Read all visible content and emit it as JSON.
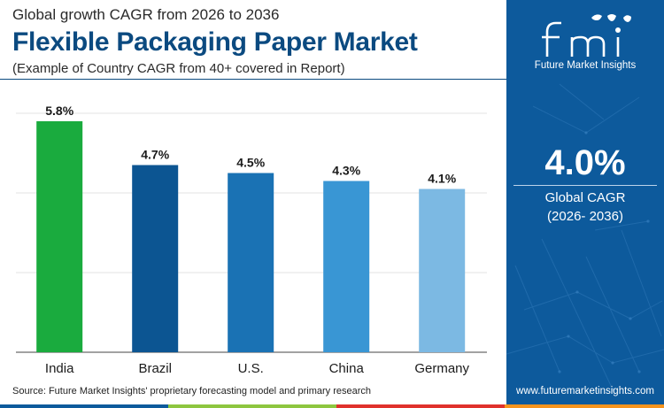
{
  "header": {
    "subtitle": "Global growth CAGR from 2026 to 2036",
    "title": "Flexible Packaging Paper Market",
    "note": "(Example of Country CAGR from 40+ covered in Report)"
  },
  "chart_data": {
    "type": "bar",
    "categories": [
      "India",
      "Brazil",
      "U.S.",
      "China",
      "Germany"
    ],
    "values": [
      5.8,
      4.7,
      4.5,
      4.3,
      4.1
    ],
    "value_labels": [
      "5.8%",
      "4.7%",
      "4.5%",
      "4.3%",
      "4.1%"
    ],
    "bar_colors": [
      "#1aab3e",
      "#0c5592",
      "#1a72b4",
      "#3996d4",
      "#7cb9e3"
    ],
    "title": "",
    "xlabel": "",
    "ylabel": "",
    "ylim": [
      0,
      6
    ],
    "grid": true,
    "legend": "none"
  },
  "source": "Source: Future Market Insights' proprietary forecasting model and primary research",
  "panel": {
    "brand_logo_text": "fmi",
    "brand_name": "Future Market Insights",
    "headline_value": "4.0%",
    "headline_label": "Global CAGR",
    "headline_period": "(2026- 2036)",
    "url": "www.futuremarketinsights.com",
    "color": "#0d5a9c"
  },
  "bottom_strip_colors": [
    "#0d5a9c",
    "#8dc63f",
    "#e0312c",
    "#f7941d"
  ]
}
